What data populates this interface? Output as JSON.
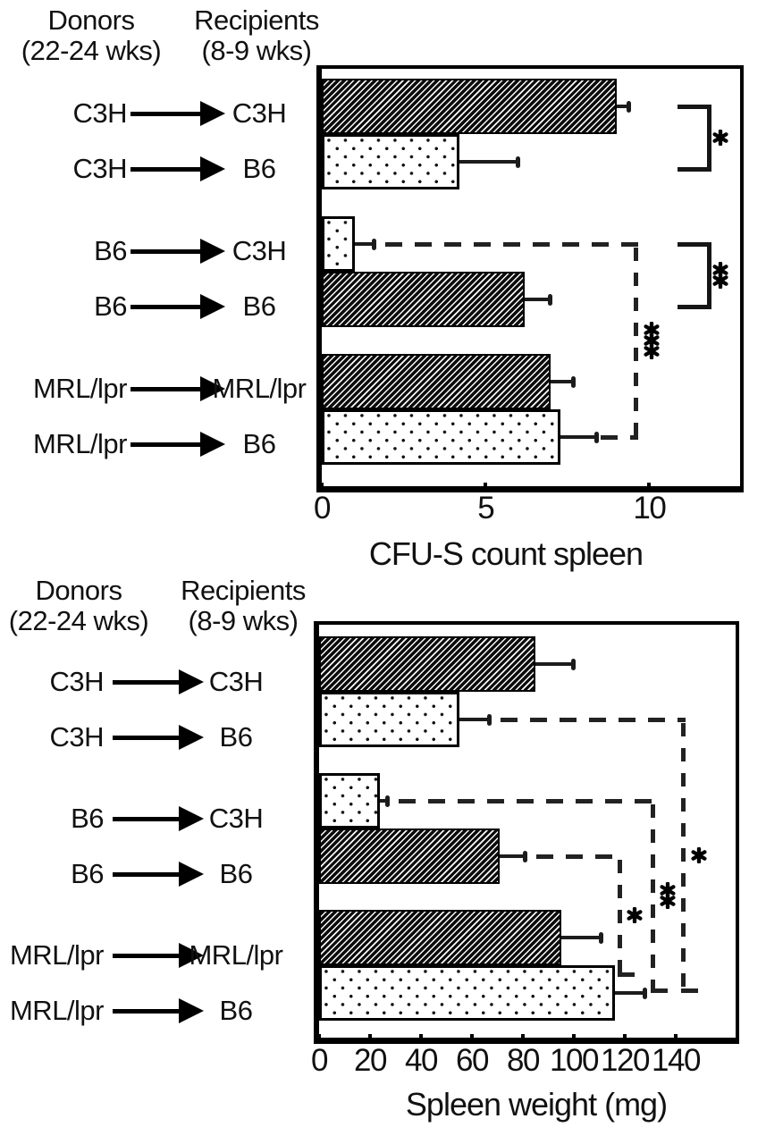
{
  "page": {
    "background": "#ffffff",
    "text_color": "#111111",
    "ink_color": "#000000"
  },
  "legend_header": {
    "donors_title": "Donors",
    "donors_subtitle": "(22-24 wks)",
    "recipients_title": "Recipients",
    "recipients_subtitle": "(8-9 wks)"
  },
  "pairs": [
    {
      "donor": "C3H",
      "recipient": "C3H"
    },
    {
      "donor": "C3H",
      "recipient": "B6"
    },
    {
      "donor": "B6",
      "recipient": "C3H"
    },
    {
      "donor": "B6",
      "recipient": "B6"
    },
    {
      "donor": "MRL/lpr",
      "recipient": "MRL/lpr"
    },
    {
      "donor": "MRL/lpr",
      "recipient": "B6"
    }
  ],
  "chart_data": [
    {
      "type": "bar",
      "orientation": "horizontal",
      "title": "",
      "xlabel": "CFU-S count spleen",
      "ylabel": "",
      "xlim": [
        0,
        12.5
      ],
      "xticks": [
        "0",
        "5",
        "10"
      ],
      "xtick_values": [
        0,
        5,
        10
      ],
      "grid": false,
      "legend_position": "none",
      "categories": [
        "C3H → C3H",
        "C3H → B6",
        "B6 → C3H",
        "B6 → B6",
        "MRL/lpr → MRL/lpr",
        "MRL/lpr → B6"
      ],
      "series": [
        {
          "name": "CFU-S count spleen",
          "values": [
            9.0,
            4.2,
            1.0,
            6.2,
            7.0,
            7.3
          ],
          "errors": [
            0.4,
            1.8,
            0.6,
            0.8,
            0.7,
            1.1
          ]
        }
      ],
      "bar_patterns": [
        "hatched",
        "dotted",
        "dotted",
        "hatched",
        "hatched",
        "dotted"
      ],
      "significance_brackets": [
        {
          "between": [
            0,
            1
          ],
          "label": "*"
        },
        {
          "between": [
            2,
            3
          ],
          "label": "**"
        }
      ],
      "dashed_comparisons": [
        {
          "between": [
            2,
            5
          ],
          "at_value": 9.6,
          "label": "***"
        }
      ]
    },
    {
      "type": "bar",
      "orientation": "horizontal",
      "title": "",
      "xlabel": "Spleen weight (mg)",
      "ylabel": "",
      "xlim": [
        0,
        160
      ],
      "xticks": [
        "0",
        "20",
        "40",
        "60",
        "80",
        "100",
        "120",
        "140"
      ],
      "xtick_values": [
        0,
        20,
        40,
        60,
        80,
        100,
        120,
        140
      ],
      "grid": false,
      "legend_position": "none",
      "categories": [
        "C3H → C3H",
        "C3H → B6",
        "B6 → C3H",
        "B6 → B6",
        "MRL/lpr → MRL/lpr",
        "MRL/lpr → B6"
      ],
      "series": [
        {
          "name": "Spleen weight (mg)",
          "values": [
            85,
            55,
            24,
            71,
            95,
            116
          ],
          "errors": [
            15,
            12,
            3,
            10,
            16,
            12
          ]
        }
      ],
      "bar_patterns": [
        "hatched",
        "dotted",
        "dotted",
        "hatched",
        "hatched",
        "dotted"
      ],
      "significance_brackets": [],
      "dashed_comparisons": [
        {
          "between": [
            3,
            5
          ],
          "at_value": 118,
          "label": "*"
        },
        {
          "between": [
            2,
            5
          ],
          "at_value": 131,
          "label": "**"
        },
        {
          "between": [
            1,
            5
          ],
          "at_value": 143,
          "label": "*"
        }
      ]
    }
  ]
}
